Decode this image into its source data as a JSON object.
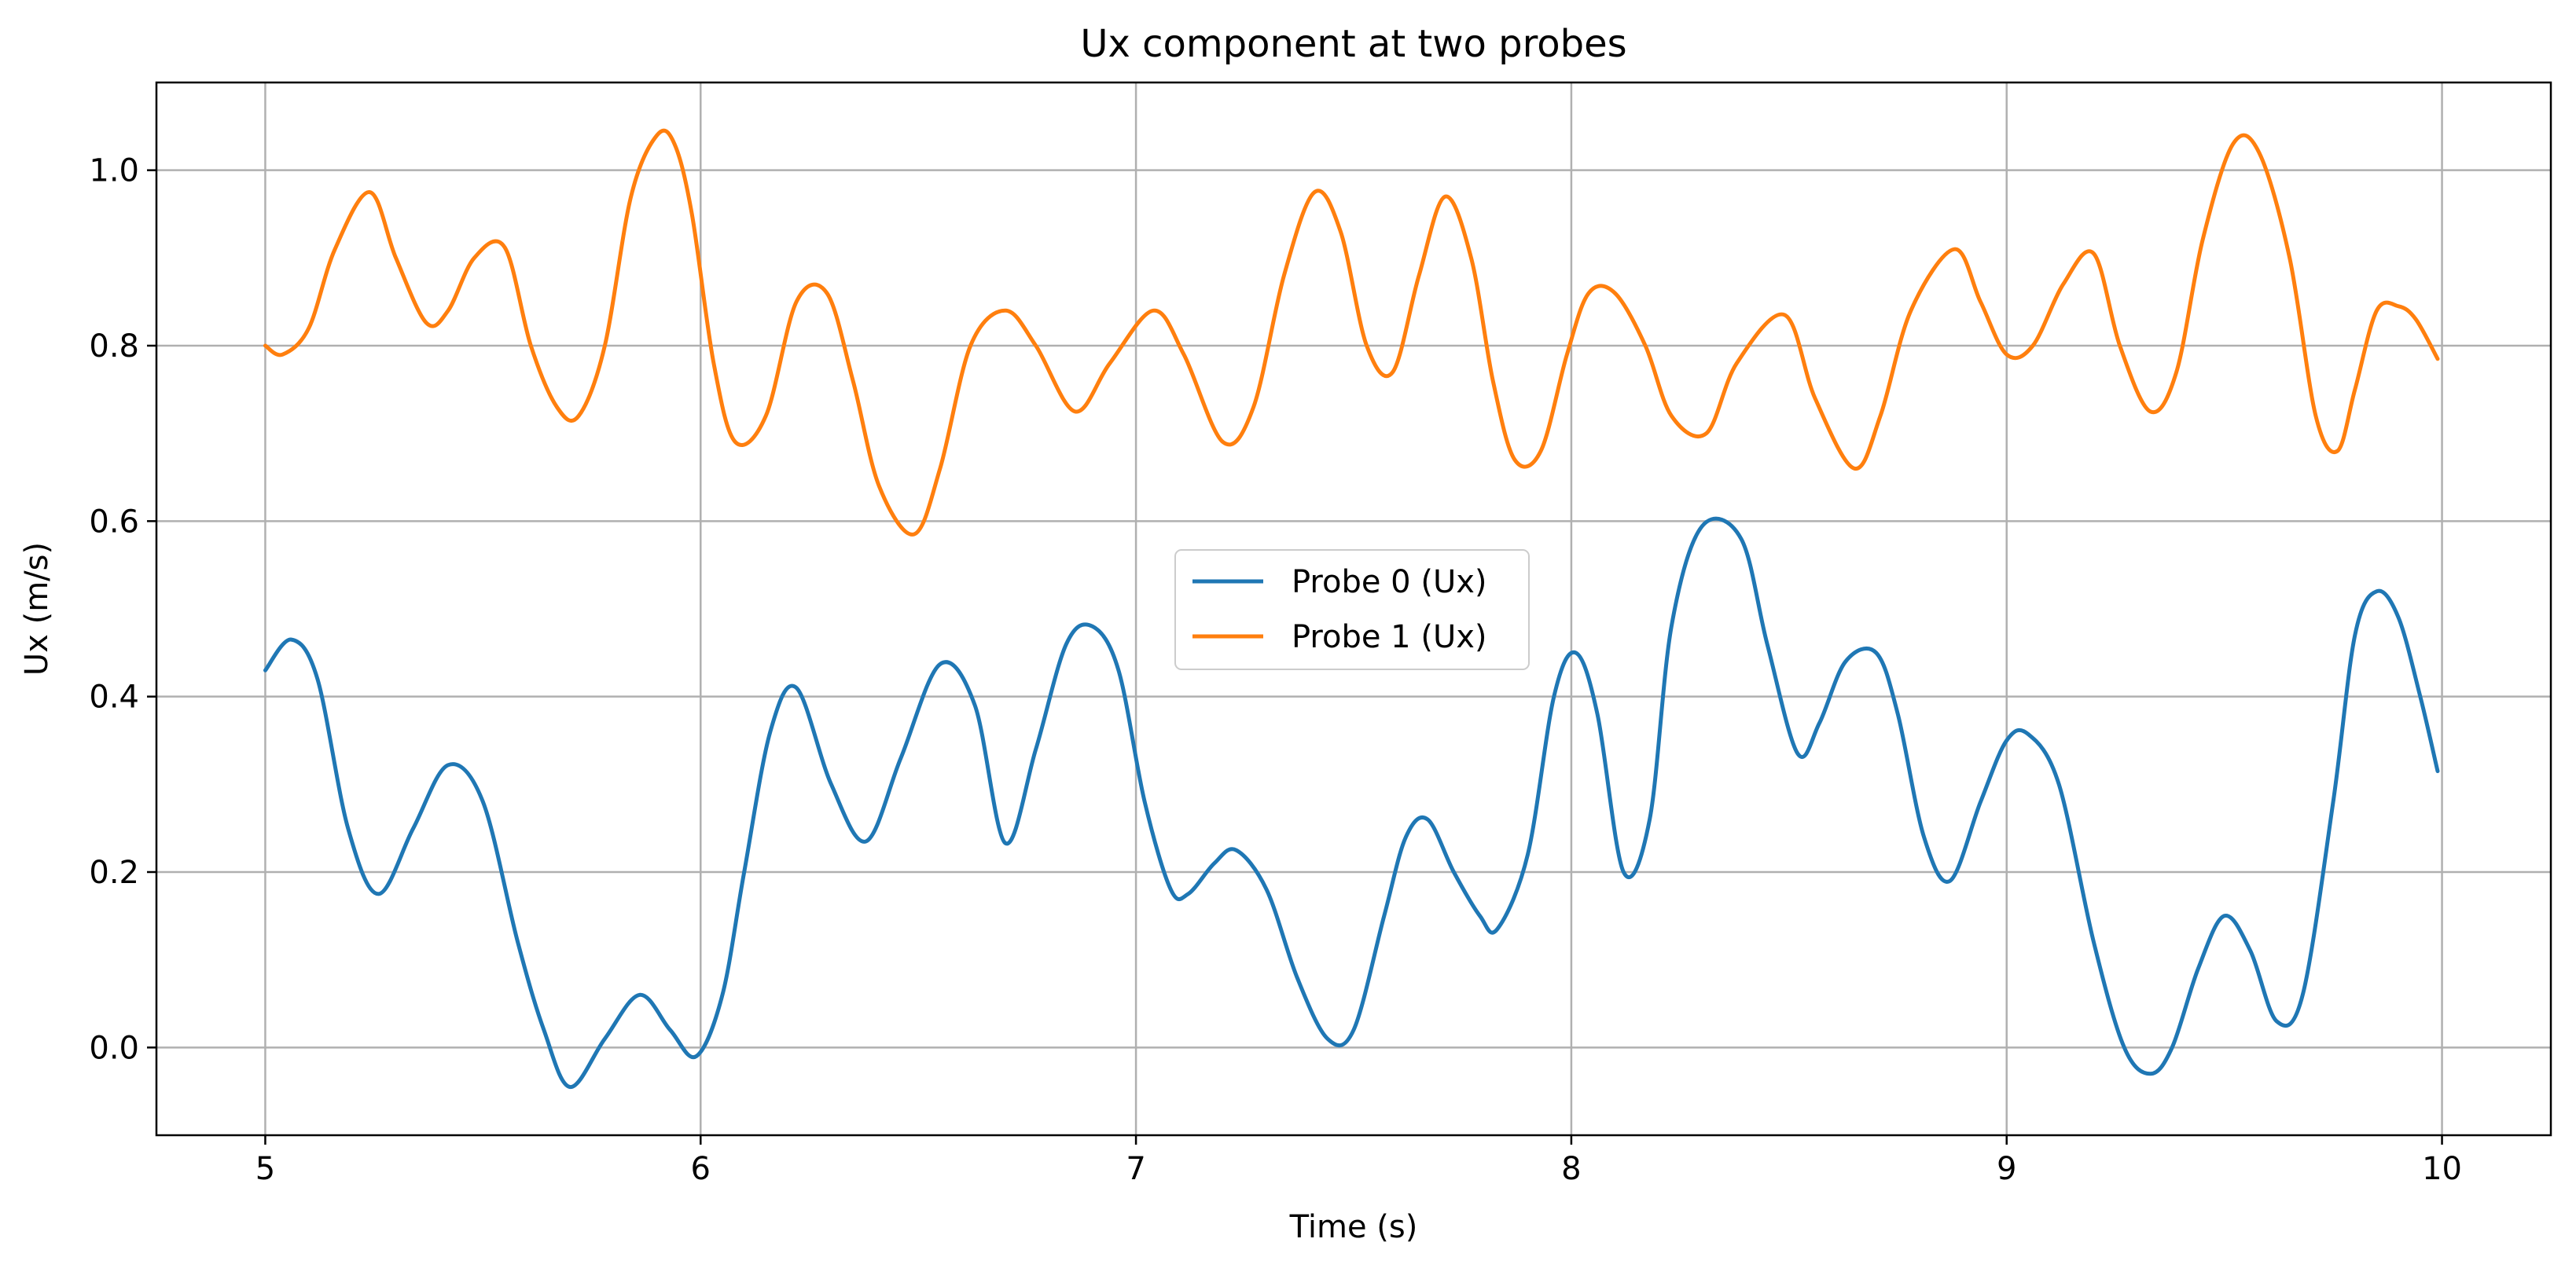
{
  "chart_data": {
    "type": "line",
    "title": "Ux component at two probes",
    "xlabel": "Time (s)",
    "ylabel": "Ux (m/s)",
    "xlim": [
      4.75,
      10.25
    ],
    "ylim": [
      -0.1,
      1.1
    ],
    "xticks": [
      5,
      6,
      7,
      8,
      9,
      10
    ],
    "xtick_labels": [
      "5",
      "6",
      "7",
      "8",
      "9",
      "10"
    ],
    "yticks": [
      0.0,
      0.2,
      0.4,
      0.6,
      0.8,
      1.0
    ],
    "ytick_labels": [
      "0.0",
      "0.2",
      "0.4",
      "0.6",
      "0.8",
      "1.0"
    ],
    "grid": true,
    "legend_position": "center",
    "series": [
      {
        "name": "Probe 0 (Ux)",
        "color": "#1f77b4",
        "x": [
          5.0,
          5.06,
          5.12,
          5.19,
          5.26,
          5.34,
          5.42,
          5.5,
          5.58,
          5.64,
          5.7,
          5.78,
          5.86,
          5.93,
          5.99,
          6.05,
          6.1,
          6.16,
          6.22,
          6.3,
          6.38,
          6.46,
          6.55,
          6.63,
          6.7,
          6.77,
          6.84,
          6.9,
          6.96,
          7.02,
          7.08,
          7.12,
          7.18,
          7.23,
          7.3,
          7.37,
          7.44,
          7.5,
          7.57,
          7.62,
          7.67,
          7.73,
          7.79,
          7.83,
          7.9,
          7.96,
          8.01,
          8.06,
          8.12,
          8.18,
          8.23,
          8.3,
          8.39,
          8.45,
          8.52,
          8.57,
          8.63,
          8.7,
          8.75,
          8.81,
          8.87,
          8.94,
          9.0,
          9.05,
          9.12,
          9.2,
          9.27,
          9.33,
          9.38,
          9.44,
          9.5,
          9.56,
          9.62,
          9.68,
          9.75,
          9.8,
          9.85,
          9.9,
          9.95,
          9.99
        ],
        "y": [
          0.43,
          0.465,
          0.42,
          0.25,
          0.175,
          0.25,
          0.322,
          0.28,
          0.12,
          0.02,
          -0.045,
          0.01,
          0.06,
          0.02,
          -0.01,
          0.06,
          0.2,
          0.36,
          0.41,
          0.3,
          0.235,
          0.33,
          0.437,
          0.39,
          0.233,
          0.34,
          0.46,
          0.48,
          0.43,
          0.28,
          0.18,
          0.175,
          0.21,
          0.225,
          0.18,
          0.08,
          0.01,
          0.02,
          0.15,
          0.24,
          0.26,
          0.2,
          0.15,
          0.135,
          0.22,
          0.4,
          0.45,
          0.38,
          0.2,
          0.26,
          0.48,
          0.594,
          0.58,
          0.46,
          0.335,
          0.37,
          0.44,
          0.45,
          0.38,
          0.24,
          0.19,
          0.28,
          0.35,
          0.357,
          0.3,
          0.12,
          0.0,
          -0.03,
          0.0,
          0.09,
          0.15,
          0.11,
          0.03,
          0.06,
          0.28,
          0.47,
          0.52,
          0.49,
          0.4,
          0.315
        ]
      },
      {
        "name": "Probe 1 (Ux)",
        "color": "#ff7f0e",
        "x": [
          5.0,
          5.04,
          5.1,
          5.16,
          5.24,
          5.3,
          5.37,
          5.42,
          5.48,
          5.55,
          5.61,
          5.67,
          5.72,
          5.78,
          5.84,
          5.9,
          5.94,
          5.98,
          6.03,
          6.08,
          6.15,
          6.22,
          6.29,
          6.35,
          6.41,
          6.49,
          6.55,
          6.62,
          6.7,
          6.77,
          6.86,
          6.94,
          7.04,
          7.11,
          7.2,
          7.27,
          7.34,
          7.41,
          7.47,
          7.53,
          7.59,
          7.65,
          7.71,
          7.77,
          7.82,
          7.87,
          7.93,
          7.99,
          8.04,
          8.1,
          8.17,
          8.23,
          8.31,
          8.38,
          8.49,
          8.56,
          8.65,
          8.71,
          8.78,
          8.88,
          8.94,
          9.0,
          9.06,
          9.13,
          9.2,
          9.26,
          9.33,
          9.39,
          9.45,
          9.52,
          9.58,
          9.65,
          9.71,
          9.76,
          9.8,
          9.85,
          9.9,
          9.94,
          9.99
        ],
        "y": [
          0.8,
          0.79,
          0.82,
          0.91,
          0.975,
          0.9,
          0.826,
          0.84,
          0.9,
          0.912,
          0.8,
          0.73,
          0.72,
          0.8,
          0.97,
          1.04,
          1.03,
          0.95,
          0.78,
          0.69,
          0.72,
          0.85,
          0.86,
          0.76,
          0.64,
          0.585,
          0.66,
          0.8,
          0.84,
          0.8,
          0.725,
          0.78,
          0.84,
          0.79,
          0.69,
          0.73,
          0.88,
          0.975,
          0.93,
          0.8,
          0.77,
          0.88,
          0.97,
          0.9,
          0.76,
          0.67,
          0.68,
          0.79,
          0.86,
          0.86,
          0.8,
          0.72,
          0.7,
          0.78,
          0.835,
          0.74,
          0.66,
          0.72,
          0.84,
          0.91,
          0.85,
          0.79,
          0.8,
          0.87,
          0.905,
          0.8,
          0.725,
          0.77,
          0.92,
          1.03,
          1.02,
          0.9,
          0.72,
          0.68,
          0.75,
          0.84,
          0.845,
          0.83,
          0.785
        ]
      }
    ]
  }
}
